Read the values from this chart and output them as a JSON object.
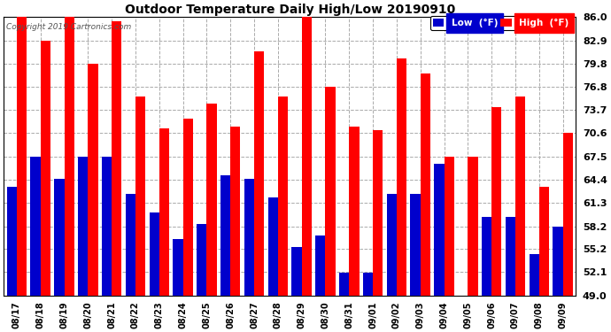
{
  "title": "Outdoor Temperature Daily High/Low 20190910",
  "copyright": "Copyright 2019 Cartronics.com",
  "background_color": "#ffffff",
  "plot_bg_color": "#ffffff",
  "grid_color": "#aaaaaa",
  "dates": [
    "08/17",
    "08/18",
    "08/19",
    "08/20",
    "08/21",
    "08/22",
    "08/23",
    "08/24",
    "08/25",
    "08/26",
    "08/27",
    "08/28",
    "08/29",
    "08/30",
    "08/31",
    "09/01",
    "09/02",
    "09/03",
    "09/04",
    "09/05",
    "09/06",
    "09/07",
    "09/08",
    "09/09"
  ],
  "highs": [
    86.0,
    82.9,
    86.0,
    79.8,
    85.5,
    75.5,
    71.2,
    72.5,
    74.5,
    71.5,
    81.5,
    75.5,
    86.0,
    76.8,
    71.5,
    71.0,
    80.5,
    78.5,
    67.5,
    67.5,
    74.0,
    75.5,
    63.5,
    70.6
  ],
  "lows": [
    63.5,
    67.5,
    64.5,
    67.5,
    67.5,
    62.5,
    60.0,
    56.5,
    58.5,
    65.0,
    64.5,
    62.0,
    55.5,
    57.0,
    52.0,
    52.0,
    62.5,
    62.5,
    66.5,
    49.0,
    59.5,
    59.5,
    54.5,
    58.2
  ],
  "high_color": "#ff0000",
  "low_color": "#0000cc",
  "ymin": 49.0,
  "ymax": 86.0,
  "yticks": [
    49.0,
    52.1,
    55.2,
    58.2,
    61.3,
    64.4,
    67.5,
    70.6,
    73.7,
    76.8,
    79.8,
    82.9,
    86.0
  ],
  "bar_width": 0.42,
  "legend_low_label": "Low  (°F)",
  "legend_high_label": "High  (°F)"
}
